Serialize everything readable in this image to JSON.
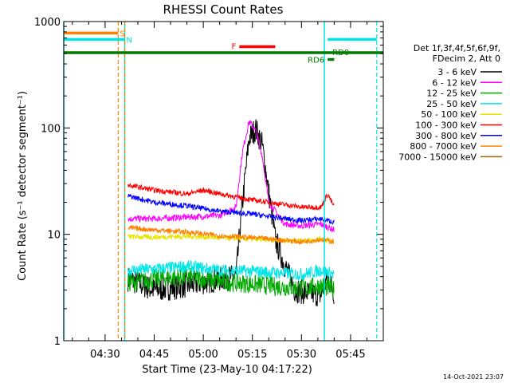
{
  "chart_data": {
    "type": "line",
    "title": "RHESSI Count Rates",
    "xlabel": "Start Time (23-May-10 04:17:22)",
    "ylabel": "Count Rate (s⁻¹ detector segment⁻¹)",
    "yscale": "log",
    "ylim": [
      1,
      1000
    ],
    "xlim": [
      "04:17:22",
      "05:55:00"
    ],
    "x_ticks": [
      "04:30",
      "04:45",
      "05:00",
      "05:15",
      "05:30",
      "05:45"
    ],
    "y_ticks": [
      "1",
      "10",
      "100",
      "1000"
    ],
    "legend_header": [
      "Det 1f,3f,4f,5f,6f,9f,",
      "FDecim 2, Att 0"
    ],
    "legend_position": "right",
    "footer_date": "14-Oct-2021 23:07",
    "series": [
      {
        "name": "3 - 6 keV",
        "color": "#000000",
        "x": [
          "04:37",
          "04:45",
          "04:55",
          "05:05",
          "05:10",
          "05:12",
          "05:14",
          "05:16",
          "05:18",
          "05:20",
          "05:22",
          "05:25",
          "05:28",
          "05:32",
          "05:36",
          "05:38",
          "05:40"
        ],
        "y": [
          3.8,
          3.0,
          3.3,
          3.8,
          4.0,
          20,
          80,
          98,
          70,
          25,
          9,
          5,
          3.0,
          2.8,
          2.7,
          4,
          2.8
        ]
      },
      {
        "name": "6 - 12 keV",
        "color": "#ff00ff",
        "x": [
          "04:37",
          "04:45",
          "04:55",
          "05:05",
          "05:10",
          "05:12",
          "05:14",
          "05:16",
          "05:18",
          "05:20",
          "05:25",
          "05:30",
          "05:36",
          "05:40"
        ],
        "y": [
          14,
          14,
          14.5,
          15,
          18,
          60,
          115,
          95,
          55,
          20,
          12.5,
          12,
          12.5,
          11
        ]
      },
      {
        "name": "12 - 25 keV",
        "color": "#00aa00",
        "x": [
          "04:37",
          "04:45",
          "04:55",
          "05:05",
          "05:15",
          "05:25",
          "05:30",
          "05:36",
          "05:40"
        ],
        "y": [
          3.5,
          3.8,
          4.0,
          3.6,
          3.4,
          3.2,
          3.1,
          3.3,
          3.0
        ]
      },
      {
        "name": "25 - 50 keV",
        "color": "#00e5e5",
        "x": [
          "04:37",
          "04:45",
          "04:55",
          "05:05",
          "05:15",
          "05:25",
          "05:30",
          "05:36",
          "05:40"
        ],
        "y": [
          4.6,
          4.7,
          5.0,
          4.6,
          4.5,
          4.3,
          4.2,
          4.6,
          4.2
        ]
      },
      {
        "name": "50 - 100 keV",
        "color": "#e5e500",
        "x": [
          "04:37",
          "04:45",
          "04:55",
          "05:05",
          "05:15",
          "05:25",
          "05:30",
          "05:36",
          "05:40"
        ],
        "y": [
          9.5,
          9.4,
          9.6,
          9.3,
          9.0,
          8.8,
          8.7,
          9.0,
          8.5
        ]
      },
      {
        "name": "100 - 300 keV",
        "color": "#ff0000",
        "x": [
          "04:37",
          "04:45",
          "04:55",
          "05:00",
          "05:05",
          "05:15",
          "05:25",
          "05:30",
          "05:36",
          "05:38",
          "05:40"
        ],
        "y": [
          29,
          26,
          24,
          26,
          24,
          21,
          19,
          18,
          18,
          24,
          18
        ]
      },
      {
        "name": "300 - 800 keV",
        "color": "#0000ff",
        "x": [
          "04:37",
          "04:45",
          "04:55",
          "05:05",
          "05:15",
          "05:25",
          "05:30",
          "05:36",
          "05:40"
        ],
        "y": [
          23,
          20,
          18.5,
          16.5,
          15.5,
          14,
          13.5,
          14,
          13
        ]
      },
      {
        "name": "800 - 7000 keV",
        "color": "#ff8000",
        "x": [
          "04:37",
          "04:45",
          "04:55",
          "05:05",
          "05:15",
          "05:25",
          "05:30",
          "05:36",
          "05:40"
        ],
        "y": [
          11.5,
          11.0,
          10.5,
          9.7,
          9.3,
          8.8,
          8.5,
          9.0,
          8.5
        ]
      },
      {
        "name": "7000 - 15000 keV",
        "color": "#996600",
        "x": [],
        "y": []
      }
    ],
    "markers": {
      "lines": [
        {
          "label": "S",
          "color": "#ff8000",
          "x_start": "04:17:22",
          "x_end": "04:34",
          "y": 780
        },
        {
          "label": "N",
          "color": "#00e5e5",
          "x_start": "04:17:22",
          "x_end": "04:36",
          "y": 680
        },
        {
          "label": "",
          "color": "#00e5e5",
          "x_start": "05:38",
          "x_end": "05:53",
          "y": 680
        },
        {
          "label": "F",
          "color": "#ff0000",
          "x_start": "05:11",
          "x_end": "05:22",
          "y": 580
        },
        {
          "label": "",
          "color": "#007a00",
          "x_start": "04:17:22",
          "x_end": "05:55",
          "y": 510
        },
        {
          "label": "RD0",
          "color": "#007a00",
          "x_start": "05:38",
          "x_end": "05:38",
          "y": 510
        },
        {
          "label": "RD6",
          "color": "#007a00",
          "x_start": "05:38",
          "x_end": "05:40",
          "y": 440
        }
      ],
      "vlines_solid": [
        {
          "x": "04:17:22",
          "color": "#00e5e5"
        },
        {
          "x": "04:36",
          "color": "#00e5e5"
        },
        {
          "x": "05:37",
          "color": "#00e5e5"
        }
      ],
      "vlines_dashed": [
        {
          "x": "04:34",
          "color": "#ff8000"
        },
        {
          "x": "04:36",
          "color": "#ff8000"
        },
        {
          "x": "05:53",
          "color": "#00e5e5"
        }
      ]
    }
  }
}
